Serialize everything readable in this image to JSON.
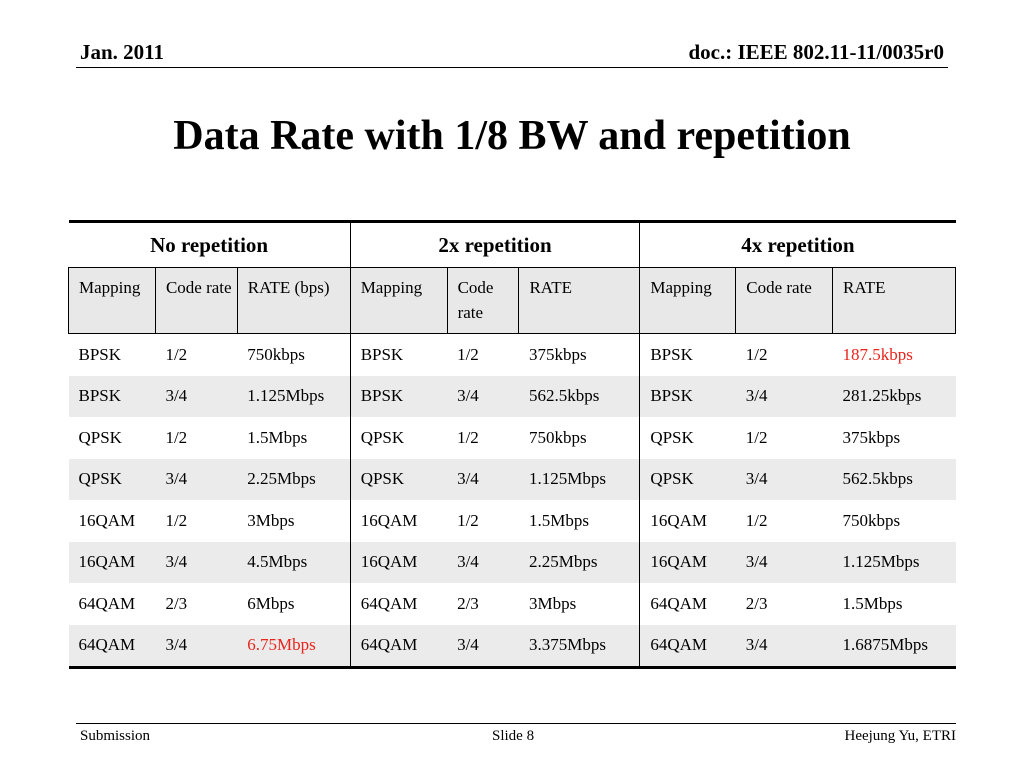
{
  "header": {
    "date": "Jan. 2011",
    "doc": "doc.: IEEE 802.11-11/0035r0"
  },
  "title": "Data Rate with 1/8 BW and repetition",
  "table": {
    "groups": [
      "No repetition",
      "2x repetition",
      "4x repetition"
    ],
    "subheaders": [
      "Mapping",
      "Code rate",
      "RATE (bps)",
      "Mapping",
      "Code rate",
      "RATE",
      "Mapping",
      "Code rate",
      "RATE"
    ],
    "rows": [
      [
        "BPSK",
        "1/2",
        "750kbps",
        "BPSK",
        "1/2",
        "375kbps",
        "BPSK",
        "1/2",
        "187.5kbps"
      ],
      [
        "BPSK",
        "3/4",
        "1.125Mbps",
        "BPSK",
        "3/4",
        "562.5kbps",
        "BPSK",
        "3/4",
        "281.25kbps"
      ],
      [
        "QPSK",
        "1/2",
        "1.5Mbps",
        "QPSK",
        "1/2",
        "750kbps",
        "QPSK",
        "1/2",
        "375kbps"
      ],
      [
        "QPSK",
        "3/4",
        "2.25Mbps",
        "QPSK",
        "3/4",
        "1.125Mbps",
        "QPSK",
        "3/4",
        "562.5kbps"
      ],
      [
        "16QAM",
        "1/2",
        "3Mbps",
        "16QAM",
        "1/2",
        "1.5Mbps",
        "16QAM",
        "1/2",
        "750kbps"
      ],
      [
        "16QAM",
        "3/4",
        "4.5Mbps",
        "16QAM",
        "3/4",
        "2.25Mbps",
        "16QAM",
        "3/4",
        "1.125Mbps"
      ],
      [
        "64QAM",
        "2/3",
        "6Mbps",
        "64QAM",
        "2/3",
        "3Mbps",
        "64QAM",
        "2/3",
        "1.5Mbps"
      ],
      [
        "64QAM",
        "3/4",
        "6.75Mbps",
        "64QAM",
        "3/4",
        "3.375Mbps",
        "64QAM",
        "3/4",
        "1.6875Mbps"
      ]
    ],
    "highlight_color": "#e8241b",
    "highlighted_cells": [
      [
        0,
        8
      ],
      [
        7,
        2
      ]
    ]
  },
  "footer": {
    "left": "Submission",
    "center": "Slide 8",
    "right": "Heejung Yu, ETRI"
  }
}
